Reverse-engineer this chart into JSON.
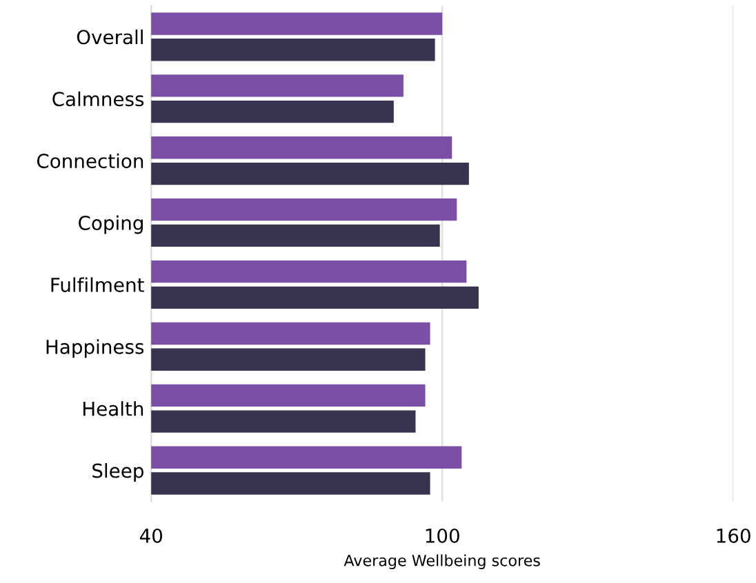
{
  "chart_data": {
    "type": "bar",
    "orientation": "horizontal",
    "xlabel": "Average Wellbeing scores",
    "categories": [
      "Overall",
      "Calmness",
      "Connection",
      "Coping",
      "Fulfilment",
      "Happiness",
      "Health",
      "Sleep"
    ],
    "series": [
      {
        "color": "#7b4fa6",
        "values": [
          100,
          92,
          102,
          103,
          105,
          97.5,
          96.5,
          104
        ]
      },
      {
        "color": "#3a3350",
        "values": [
          98.5,
          90,
          105.5,
          99.5,
          107.5,
          96.5,
          94.5,
          97.5
        ]
      }
    ],
    "xlim": [
      40,
      160
    ],
    "xticks": [
      40,
      100,
      160
    ],
    "grid": "x"
  }
}
